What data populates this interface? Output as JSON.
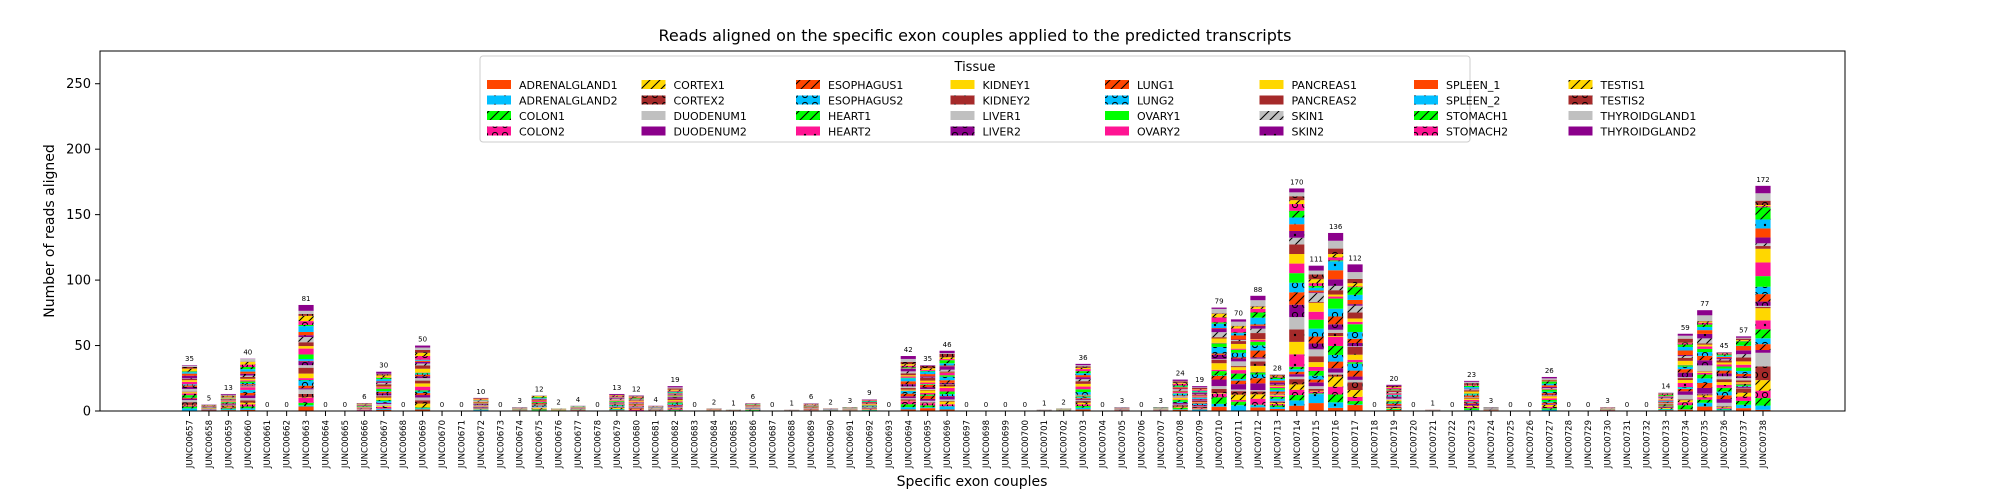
{
  "chart_data": {
    "type": "bar",
    "stacked": true,
    "title": "Reads aligned on the specific exon couples applied to the predicted transcripts",
    "xlabel": "Specific exon couples",
    "ylabel": "Number of reads aligned",
    "ylim": [
      0,
      275
    ],
    "yticks": [
      0,
      50,
      100,
      150,
      200,
      250
    ],
    "legend": {
      "title": "Tissue",
      "placement": "top-center",
      "columns": 8
    },
    "categories": [
      "JUNC00657",
      "JUNC00658",
      "JUNC00659",
      "JUNC00660",
      "JUNC00661",
      "JUNC00662",
      "JUNC00663",
      "JUNC00664",
      "JUNC00665",
      "JUNC00666",
      "JUNC00667",
      "JUNC00668",
      "JUNC00669",
      "JUNC00670",
      "JUNC00671",
      "JUNC00672",
      "JUNC00673",
      "JUNC00674",
      "JUNC00675",
      "JUNC00676",
      "JUNC00677",
      "JUNC00678",
      "JUNC00679",
      "JUNC00680",
      "JUNC00681",
      "JUNC00682",
      "JUNC00683",
      "JUNC00684",
      "JUNC00685",
      "JUNC00686",
      "JUNC00687",
      "JUNC00688",
      "JUNC00689",
      "JUNC00690",
      "JUNC00691",
      "JUNC00692",
      "JUNC00693",
      "JUNC00694",
      "JUNC00695",
      "JUNC00696",
      "JUNC00697",
      "JUNC00698",
      "JUNC00699",
      "JUNC00700",
      "JUNC00701",
      "JUNC00702",
      "JUNC00703",
      "JUNC00704",
      "JUNC00705",
      "JUNC00706",
      "JUNC00707",
      "JUNC00708",
      "JUNC00709",
      "JUNC00710",
      "JUNC00711",
      "JUNC00712",
      "JUNC00713",
      "JUNC00714",
      "JUNC00715",
      "JUNC00716",
      "JUNC00717",
      "JUNC00718",
      "JUNC00719",
      "JUNC00720",
      "JUNC00721",
      "JUNC00722",
      "JUNC00723",
      "JUNC00724",
      "JUNC00725",
      "JUNC00726",
      "JUNC00727",
      "JUNC00728",
      "JUNC00729",
      "JUNC00730",
      "JUNC00731",
      "JUNC00732",
      "JUNC00733",
      "JUNC00734",
      "JUNC00735",
      "JUNC00736",
      "JUNC00737",
      "JUNC00738"
    ],
    "totals": [
      35,
      5,
      13,
      40,
      0,
      0,
      81,
      0,
      0,
      6,
      30,
      0,
      50,
      0,
      0,
      10,
      0,
      3,
      12,
      2,
      4,
      0,
      13,
      12,
      4,
      19,
      0,
      2,
      1,
      6,
      0,
      1,
      6,
      2,
      3,
      9,
      0,
      42,
      35,
      46,
      0,
      0,
      0,
      0,
      1,
      2,
      36,
      0,
      3,
      0,
      3,
      24,
      19,
      79,
      70,
      88,
      28,
      170,
      111,
      136,
      112,
      0,
      20,
      0,
      1,
      0,
      23,
      3,
      0,
      0,
      26,
      0,
      0,
      3,
      0,
      0,
      14,
      59,
      77,
      45,
      57,
      172
    ],
    "series": [
      {
        "name": "ADRENALGLAND1",
        "color": "#ff4500",
        "hatch": "none"
      },
      {
        "name": "ADRENALGLAND2",
        "color": "#00bfff",
        "hatch": "dot"
      },
      {
        "name": "COLON1",
        "color": "#00ff00",
        "hatch": "slash"
      },
      {
        "name": "COLON2",
        "color": "#ff1493",
        "hatch": "circle"
      },
      {
        "name": "CORTEX1",
        "color": "#ffd700",
        "hatch": "slash"
      },
      {
        "name": "CORTEX2",
        "color": "#a52a2a",
        "hatch": "circle"
      },
      {
        "name": "DUODENUM1",
        "color": "#c0c0c0",
        "hatch": "none"
      },
      {
        "name": "DUODENUM2",
        "color": "#8b008b",
        "hatch": "none"
      },
      {
        "name": "ESOPHAGUS1",
        "color": "#ff4500",
        "hatch": "slash"
      },
      {
        "name": "ESOPHAGUS2",
        "color": "#00bfff",
        "hatch": "circle"
      },
      {
        "name": "HEART1",
        "color": "#00ff00",
        "hatch": "slash"
      },
      {
        "name": "HEART2",
        "color": "#ff1493",
        "hatch": "dot"
      },
      {
        "name": "KIDNEY1",
        "color": "#ffd700",
        "hatch": "none"
      },
      {
        "name": "KIDNEY2",
        "color": "#a52a2a",
        "hatch": "dot"
      },
      {
        "name": "LIVER1",
        "color": "#c0c0c0",
        "hatch": "none"
      },
      {
        "name": "LIVER2",
        "color": "#8b008b",
        "hatch": "circle"
      },
      {
        "name": "LUNG1",
        "color": "#ff4500",
        "hatch": "slash"
      },
      {
        "name": "LUNG2",
        "color": "#00bfff",
        "hatch": "circle"
      },
      {
        "name": "OVARY1",
        "color": "#00ff00",
        "hatch": "none"
      },
      {
        "name": "OVARY2",
        "color": "#ff1493",
        "hatch": "none"
      },
      {
        "name": "PANCREAS1",
        "color": "#ffd700",
        "hatch": "none"
      },
      {
        "name": "PANCREAS2",
        "color": "#a52a2a",
        "hatch": "none"
      },
      {
        "name": "SKIN1",
        "color": "#c0c0c0",
        "hatch": "slash"
      },
      {
        "name": "SKIN2",
        "color": "#8b008b",
        "hatch": "dot"
      },
      {
        "name": "SPLEEN_1",
        "color": "#ff4500",
        "hatch": "none"
      },
      {
        "name": "SPLEEN_2",
        "color": "#00bfff",
        "hatch": "dot"
      },
      {
        "name": "STOMACH1",
        "color": "#00ff00",
        "hatch": "slash"
      },
      {
        "name": "STOMACH2",
        "color": "#ff1493",
        "hatch": "circle"
      },
      {
        "name": "TESTIS1",
        "color": "#ffd700",
        "hatch": "slash"
      },
      {
        "name": "TESTIS2",
        "color": "#a52a2a",
        "hatch": "circle"
      },
      {
        "name": "THYROIDGLAND1",
        "color": "#c0c0c0",
        "hatch": "none"
      },
      {
        "name": "THYROIDGLAND2",
        "color": "#8b008b",
        "hatch": "none"
      }
    ]
  }
}
